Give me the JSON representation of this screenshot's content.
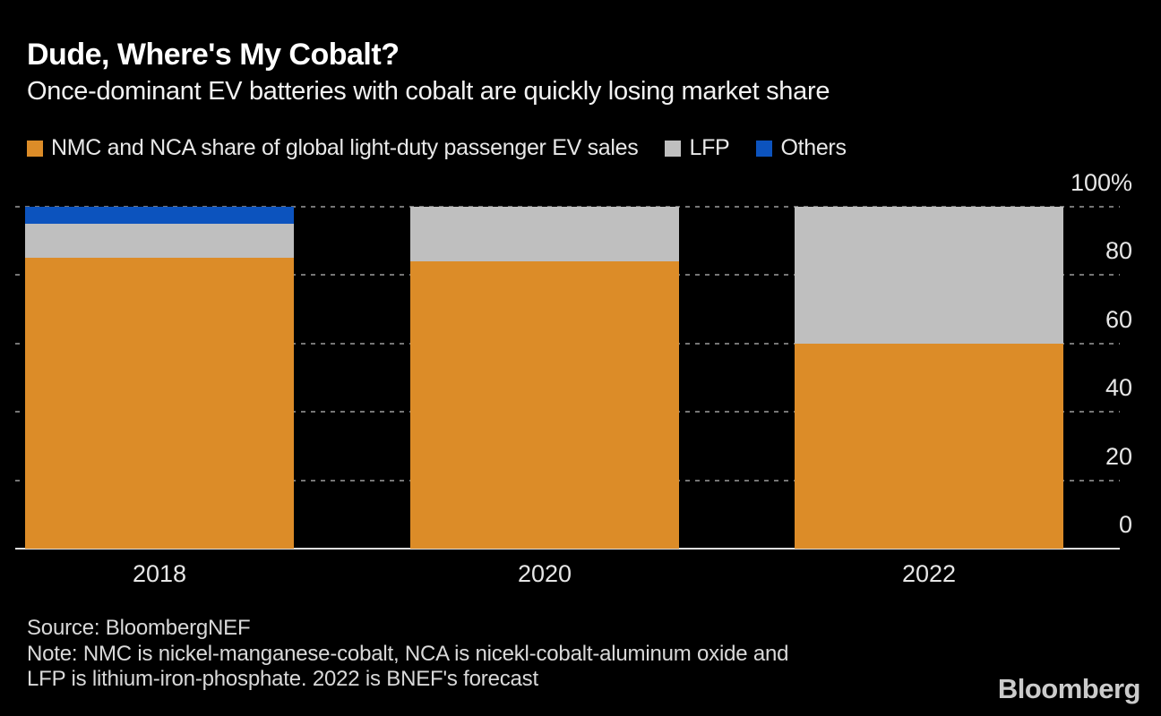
{
  "chart_data": {
    "type": "bar",
    "stacked": true,
    "title": "Dude, Where's My Cobalt?",
    "subtitle": "Once-dominant EV batteries with cobalt are quickly losing market share",
    "categories": [
      "2018",
      "2020",
      "2022"
    ],
    "series": [
      {
        "name": "NMC and NCA share of global light-duty passenger EV sales",
        "color": "#DC8C28",
        "values": [
          85,
          84,
          60
        ]
      },
      {
        "name": "LFP",
        "color": "#BFBFBF",
        "values": [
          10,
          16,
          40
        ]
      },
      {
        "name": "Others",
        "color": "#0C53BE",
        "values": [
          5,
          0,
          0
        ]
      }
    ],
    "unit": "%",
    "ylim": [
      0,
      100
    ],
    "yticks": [
      0,
      20,
      40,
      60,
      80,
      100
    ],
    "ytick_labels": [
      "0",
      "20",
      "40",
      "60",
      "80",
      "100%"
    ],
    "grid": "horizontal-dashed",
    "legend_position": "top",
    "background": "#000000"
  },
  "footer": {
    "source": "Source: BloombergNEF",
    "note_line1": "Note: NMC is nickel-manganese-cobalt, NCA is nicekl-cobalt-aluminum oxide and",
    "note_line2": "LFP is lithium-iron-phosphate. 2022 is BNEF's forecast",
    "logo": "Bloomberg"
  }
}
